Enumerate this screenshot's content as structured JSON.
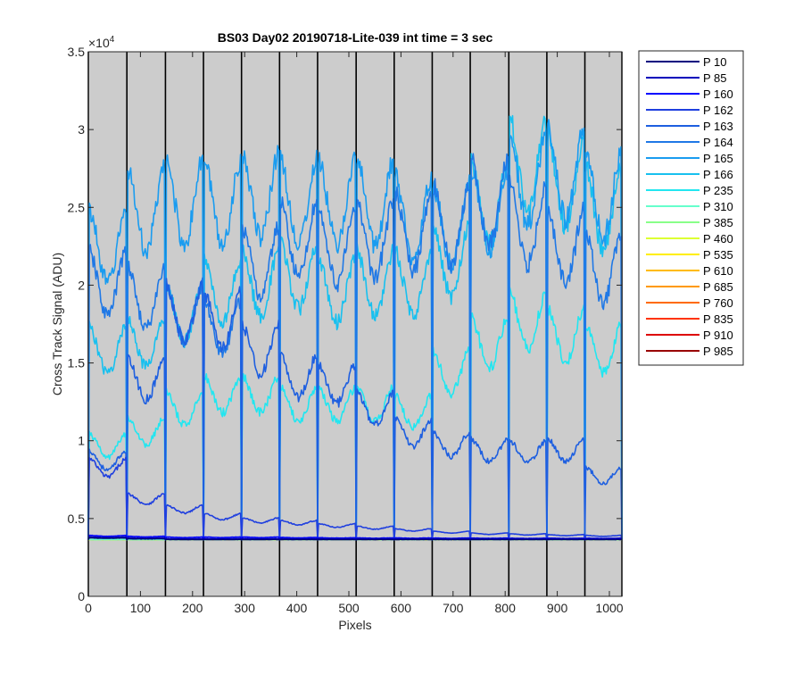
{
  "chart_data": {
    "type": "line",
    "title": "BS03 Day02 20190718-Lite-039 int time = 3 sec",
    "xlabel": "Pixels",
    "ylabel": "Cross Track Signal (ADU)",
    "xlim": [
      0,
      1024
    ],
    "ylim": [
      0,
      35000
    ],
    "xticks": [
      0,
      100,
      200,
      300,
      400,
      500,
      600,
      700,
      800,
      900,
      1000
    ],
    "yticks": [
      0,
      5000,
      10000,
      15000,
      20000,
      25000,
      30000,
      35000
    ],
    "ytick_labels": [
      "0",
      "0.5",
      "1",
      "1.5",
      "2",
      "2.5",
      "3",
      "3.5"
    ],
    "y_exponent_label": "×10",
    "y_exponent_power": "4",
    "background_color": "#cccccc",
    "column_boundaries": [
      0,
      74,
      148,
      221,
      294,
      367,
      440,
      514,
      587,
      660,
      733,
      807,
      880,
      953,
      1024
    ],
    "baseline": 3650,
    "legend_position": "outside-right",
    "series": [
      {
        "name": "P 10",
        "color": "#00007f",
        "segments": [
          3750,
          3700,
          3650,
          3650,
          3650,
          3650,
          3650,
          3650,
          3650,
          3650,
          3650,
          3650,
          3650,
          3650
        ]
      },
      {
        "name": "P 85",
        "color": "#0000bb",
        "segments": [
          3800,
          3750,
          3700,
          3700,
          3700,
          3700,
          3700,
          3700,
          3700,
          3700,
          3700,
          3700,
          3700,
          3700
        ]
      },
      {
        "name": "P 160",
        "color": "#0000ff",
        "segments": [
          3900,
          3850,
          3800,
          3800,
          3800,
          3780,
          3760,
          3750,
          3750,
          3740,
          3740,
          3730,
          3730,
          3730
        ]
      },
      {
        "name": "P 162",
        "color": "#1f3fdf",
        "segments": [
          8500,
          6400,
          5700,
          5200,
          4950,
          4800,
          4600,
          4450,
          4300,
          4150,
          4050,
          4000,
          3950,
          3900
        ]
      },
      {
        "name": "P 163",
        "color": "#1e5fe0",
        "segments": [
          9000,
          14500,
          19000,
          18500,
          16500,
          14700,
          14200,
          12500,
          10900,
          10100,
          9700,
          9600,
          9700,
          8000
        ]
      },
      {
        "name": "P 164",
        "color": "#1f78e6",
        "segments": [
          21000,
          20000,
          19000,
          18000,
          22500,
          24000,
          23500,
          24000,
          24500,
          25000,
          26500,
          25000,
          23500,
          22000
        ]
      },
      {
        "name": "P 165",
        "color": "#1a9cf0",
        "segments": [
          23500,
          26000,
          26500,
          26500,
          27000,
          26500,
          26500,
          26500,
          25500,
          25000,
          26000,
          28000,
          28500,
          27000
        ]
      },
      {
        "name": "P 166",
        "color": "#18c0ef",
        "segments": [
          16500,
          17000,
          19000,
          20500,
          21000,
          21500,
          20500,
          21000,
          21000,
          22500,
          26500,
          29000,
          28000,
          26000
        ]
      },
      {
        "name": "P 235",
        "color": "#22e6f0",
        "segments": [
          10000,
          11000,
          12500,
          13500,
          13500,
          12800,
          12800,
          12800,
          12300,
          15000,
          17000,
          18500,
          17500,
          16500
        ]
      },
      {
        "name": "P 310",
        "color": "#66ffcc",
        "segments": [
          3650,
          3650,
          3650,
          3650,
          3650,
          3650,
          3650,
          3650,
          3650,
          3650,
          3650,
          3650,
          3650,
          3650
        ]
      },
      {
        "name": "P 385",
        "color": "#88ff88",
        "segments": [
          3650,
          3650,
          3650,
          3650,
          3650,
          3650,
          3650,
          3650,
          3650,
          3650,
          3650,
          3650,
          3650,
          3650
        ]
      },
      {
        "name": "P 460",
        "color": "#ddff33",
        "segments": [
          3650,
          3650,
          3650,
          3650,
          3650,
          3650,
          3650,
          3650,
          3650,
          3650,
          3650,
          3650,
          3650,
          3650
        ]
      },
      {
        "name": "P 535",
        "color": "#ffee00",
        "segments": [
          3650,
          3650,
          3650,
          3650,
          3650,
          3650,
          3650,
          3650,
          3650,
          3650,
          3650,
          3650,
          3650,
          3650
        ]
      },
      {
        "name": "P 610",
        "color": "#ffbb00",
        "segments": [
          3650,
          3650,
          3650,
          3650,
          3650,
          3650,
          3650,
          3650,
          3650,
          3650,
          3650,
          3650,
          3650,
          3650
        ]
      },
      {
        "name": "P 685",
        "color": "#ff9900",
        "segments": [
          3650,
          3650,
          3650,
          3650,
          3650,
          3650,
          3650,
          3650,
          3650,
          3650,
          3650,
          3650,
          3650,
          3650
        ]
      },
      {
        "name": "P 760",
        "color": "#ff6a00",
        "segments": [
          3650,
          3650,
          3650,
          3650,
          3650,
          3650,
          3650,
          3650,
          3650,
          3650,
          3650,
          3650,
          3650,
          3650
        ]
      },
      {
        "name": "P 835",
        "color": "#ff3300",
        "segments": [
          3650,
          3650,
          3650,
          3650,
          3650,
          3650,
          3650,
          3650,
          3650,
          3650,
          3650,
          3650,
          3650,
          3650
        ]
      },
      {
        "name": "P 910",
        "color": "#dd0000",
        "segments": [
          3650,
          3650,
          3650,
          3650,
          3650,
          3650,
          3650,
          3650,
          3650,
          3650,
          3650,
          3650,
          3650,
          3650
        ]
      },
      {
        "name": "P 985",
        "color": "#990000",
        "segments": [
          3650,
          3650,
          3650,
          3650,
          3650,
          3650,
          3650,
          3650,
          3650,
          3650,
          3650,
          3650,
          3650,
          3650
        ]
      }
    ]
  }
}
